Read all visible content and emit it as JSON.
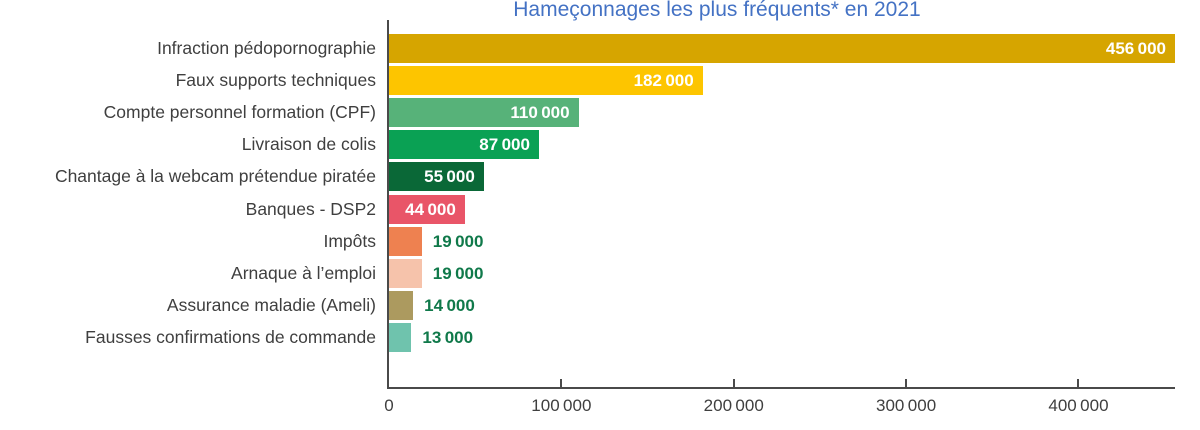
{
  "title": {
    "text": "Hameçonnages les plus fréquents* en 2021",
    "color": "#4472C4"
  },
  "chart_data": {
    "type": "bar",
    "orientation": "horizontal",
    "title": "Hameçonnages les plus fréquents* en 2021",
    "categories": [
      "Infraction pédopornographie",
      "Faux supports techniques",
      "Compte personnel formation (CPF)",
      "Livraison de colis",
      "Chantage à la webcam prétendue piratée",
      "Banques - DSP2",
      "Impôts",
      "Arnaque à l’emploi",
      "Assurance maladie (Ameli)",
      "Fausses confirmations de commande"
    ],
    "values": [
      456000,
      182000,
      110000,
      87000,
      55000,
      44000,
      19000,
      19000,
      14000,
      13000
    ],
    "value_labels": [
      "456 000",
      "182 000",
      "110 000",
      "87 000",
      "55 000",
      "44 000",
      "19 000",
      "19 000",
      "14 000",
      "13 000"
    ],
    "bar_colors": [
      "#D6A500",
      "#FDC500",
      "#57B279",
      "#0AA154",
      "#0A6837",
      "#E95568",
      "#EE8150",
      "#F6C3AB",
      "#AC9A5F",
      "#6FC3AD"
    ],
    "value_label_placement": [
      "inside",
      "inside",
      "inside",
      "inside",
      "inside",
      "inside",
      "outside",
      "outside",
      "outside",
      "outside"
    ],
    "inside_label_color": "#FFFFFF",
    "outside_label_color": "#10794A",
    "xlim": [
      0,
      456000
    ],
    "x_ticks": [
      0,
      100000,
      200000,
      300000,
      400000
    ],
    "x_tick_labels": [
      "0",
      "100 000",
      "200 000",
      "300 000",
      "400 000"
    ],
    "xlabel": "",
    "ylabel": "",
    "grid": false,
    "legend": false
  },
  "colors": {
    "axis": "#4A4A4A",
    "category_label": "#3F3F3F",
    "tick_label": "#3F3F3F",
    "background": "#FFFFFF"
  }
}
